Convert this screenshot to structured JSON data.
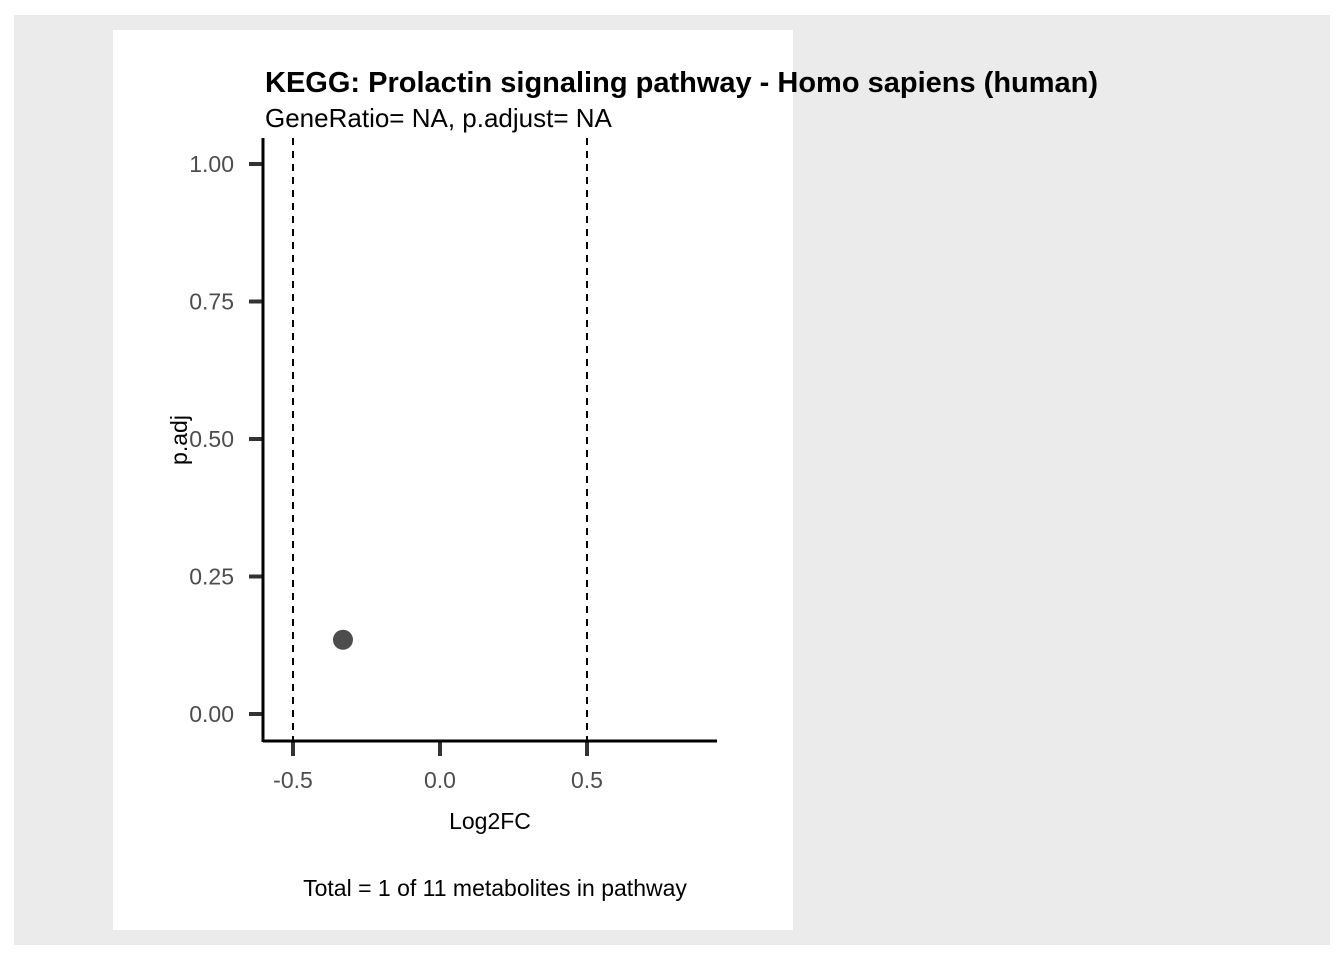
{
  "chart_data": {
    "type": "scatter",
    "title": "KEGG: Prolactin signaling pathway - Homo sapiens (human)",
    "subtitle": "GeneRatio= NA, p.adjust= NA",
    "xlabel": "Log2FC",
    "ylabel": "p.adj",
    "caption": "Total = 1 of 11 metabolites in pathway",
    "xlim": [
      -0.6,
      0.95
    ],
    "ylim": [
      -0.1,
      1.05
    ],
    "x_ticks": [
      -0.5,
      0.0,
      0.5
    ],
    "x_tick_labels": [
      "-0.5",
      "0.0",
      "0.5"
    ],
    "y_ticks": [
      0.0,
      0.25,
      0.5,
      0.75,
      1.0
    ],
    "y_tick_labels": [
      "0.00",
      "0.25",
      "0.50",
      "0.75",
      "1.00"
    ],
    "vlines": [
      -0.5,
      0.5
    ],
    "grid": false,
    "points": [
      {
        "x": -0.33,
        "y": 0.135
      }
    ],
    "colors": {
      "point": "#4d4d4d",
      "outer_background": "#ebebeb",
      "panel_background": "#ffffff"
    }
  }
}
